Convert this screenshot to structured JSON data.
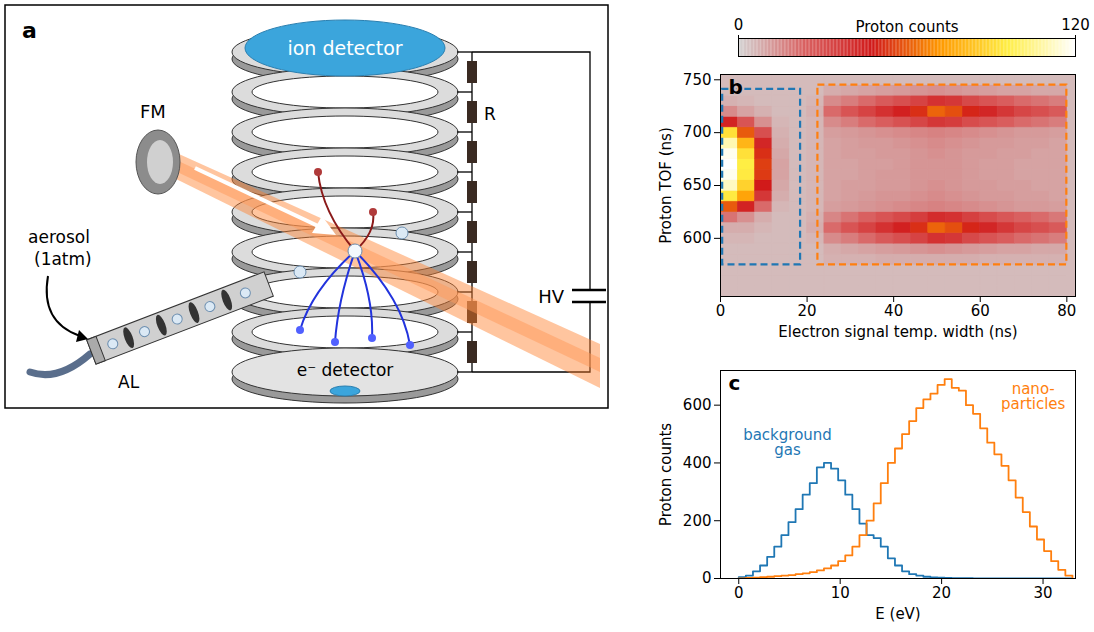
{
  "diagram": {
    "panel": "a",
    "ion_detector": "ion detector",
    "mirror": "FM",
    "resistor": "R",
    "aerosol": "aerosol",
    "pressure": "(1atm)",
    "aerodynamic_lens": "AL",
    "voltage": "HV",
    "electron_detector": "e⁻ detector"
  },
  "chart_data": [
    {
      "type": "heatmap",
      "panel": "b",
      "xlabel": "Electron signal temp. width (ns)",
      "ylabel": "Proton TOF (ns)",
      "xlim": [
        0,
        82
      ],
      "ylim": [
        545,
        755
      ],
      "xticks": [
        0,
        20,
        40,
        60,
        80
      ],
      "yticks": [
        600,
        650,
        700,
        750
      ],
      "x_bins": [
        0,
        4,
        8,
        12,
        16,
        20,
        24,
        28,
        32,
        36,
        40,
        44,
        48,
        52,
        56,
        60,
        64,
        68,
        72,
        76,
        80
      ],
      "y_bins": [
        545,
        555,
        565,
        575,
        585,
        595,
        605,
        615,
        625,
        635,
        645,
        655,
        665,
        675,
        685,
        695,
        705,
        715,
        725,
        735,
        745,
        755
      ],
      "counts": [
        [
          5,
          5,
          5,
          5,
          5,
          5,
          5,
          5,
          5,
          5,
          5,
          5,
          5,
          5,
          5,
          5,
          5,
          5,
          5,
          5
        ],
        [
          5,
          5,
          5,
          5,
          5,
          5,
          5,
          5,
          5,
          5,
          5,
          5,
          5,
          5,
          5,
          5,
          5,
          5,
          5,
          5
        ],
        [
          5,
          5,
          5,
          5,
          5,
          5,
          5,
          5,
          5,
          5,
          5,
          5,
          5,
          5,
          5,
          5,
          5,
          5,
          5,
          5
        ],
        [
          5,
          5,
          5,
          5,
          5,
          5,
          7,
          7,
          7,
          8,
          8,
          8,
          8,
          8,
          8,
          7,
          7,
          7,
          7,
          7
        ],
        [
          5,
          5,
          5,
          5,
          5,
          5,
          8,
          9,
          10,
          11,
          12,
          13,
          14,
          13,
          12,
          11,
          10,
          10,
          9,
          9
        ],
        [
          6,
          6,
          5,
          5,
          5,
          6,
          15,
          18,
          22,
          26,
          30,
          34,
          40,
          38,
          32,
          28,
          25,
          22,
          20,
          18
        ],
        [
          8,
          8,
          6,
          5,
          5,
          8,
          22,
          28,
          34,
          40,
          46,
          52,
          62,
          58,
          50,
          44,
          38,
          33,
          30,
          26
        ],
        [
          20,
          14,
          8,
          5,
          5,
          7,
          16,
          20,
          24,
          28,
          32,
          36,
          42,
          40,
          35,
          31,
          27,
          24,
          22,
          19
        ],
        [
          60,
          45,
          22,
          6,
          5,
          6,
          11,
          12,
          13,
          14,
          15,
          16,
          17,
          16,
          15,
          14,
          13,
          12,
          12,
          11
        ],
        [
          95,
          75,
          38,
          8,
          5,
          6,
          10,
          11,
          12,
          13,
          13,
          14,
          15,
          14,
          13,
          12,
          12,
          11,
          11,
          10
        ],
        [
          112,
          88,
          48,
          9,
          5,
          6,
          10,
          11,
          11,
          12,
          12,
          13,
          14,
          13,
          12,
          12,
          11,
          11,
          10,
          10
        ],
        [
          118,
          95,
          54,
          10,
          5,
          6,
          10,
          10,
          11,
          12,
          12,
          13,
          13,
          13,
          12,
          11,
          11,
          10,
          10,
          10
        ],
        [
          120,
          96,
          55,
          10,
          5,
          6,
          10,
          10,
          11,
          11,
          12,
          13,
          13,
          13,
          12,
          11,
          11,
          10,
          10,
          10
        ],
        [
          118,
          92,
          52,
          9,
          5,
          6,
          10,
          11,
          11,
          12,
          12,
          13,
          14,
          13,
          12,
          12,
          11,
          11,
          10,
          10
        ],
        [
          110,
          80,
          44,
          8,
          5,
          6,
          10,
          11,
          12,
          12,
          13,
          14,
          15,
          14,
          13,
          12,
          12,
          11,
          11,
          10
        ],
        [
          92,
          60,
          30,
          7,
          5,
          6,
          11,
          12,
          13,
          14,
          15,
          16,
          17,
          16,
          15,
          14,
          13,
          12,
          12,
          11
        ],
        [
          45,
          28,
          14,
          6,
          5,
          6,
          15,
          18,
          22,
          25,
          29,
          33,
          38,
          36,
          31,
          28,
          25,
          22,
          20,
          18
        ],
        [
          15,
          10,
          7,
          5,
          5,
          7,
          22,
          28,
          34,
          40,
          46,
          52,
          62,
          58,
          50,
          44,
          38,
          33,
          30,
          26
        ],
        [
          7,
          6,
          5,
          5,
          5,
          6,
          15,
          18,
          22,
          26,
          30,
          34,
          40,
          38,
          32,
          28,
          25,
          22,
          20,
          18
        ],
        [
          5,
          5,
          5,
          5,
          5,
          5,
          8,
          9,
          10,
          11,
          12,
          13,
          14,
          13,
          12,
          11,
          10,
          10,
          9,
          9
        ],
        [
          5,
          5,
          5,
          5,
          5,
          5,
          5,
          5,
          5,
          5,
          5,
          5,
          5,
          5,
          5,
          5,
          5,
          5,
          5,
          5
        ]
      ],
      "colorbar": {
        "label": "Proton counts",
        "range": [
          0,
          120
        ],
        "ticks": [
          0,
          120
        ],
        "colors": [
          "#d3d3d3",
          "#d96060",
          "#d11a1a",
          "#ff9900",
          "#ffee44",
          "#ffffff"
        ]
      },
      "regions": [
        {
          "x": [
            0.5,
            18.5
          ],
          "y": [
            575,
            741
          ],
          "color": "#1f77b4"
        },
        {
          "x": [
            22.5,
            80
          ],
          "y": [
            575,
            745
          ],
          "color": "#ff7f0e"
        }
      ]
    },
    {
      "type": "histogram",
      "panel": "c",
      "xlabel": "E (eV)",
      "ylabel": "Proton counts",
      "xlim": [
        -1.8,
        33.2
      ],
      "ylim": [
        0,
        720
      ],
      "xticks": [
        0,
        10,
        20,
        30
      ],
      "yticks": [
        0,
        200,
        400,
        600
      ],
      "bins": [
        0,
        0.7,
        1.4,
        2.1,
        2.8,
        3.5,
        4.2,
        4.9,
        5.6,
        6.3,
        7,
        7.7,
        8.4,
        9.1,
        9.8,
        10.5,
        11.2,
        11.9,
        12.6,
        13.3,
        14,
        14.7,
        15.4,
        16.1,
        16.8,
        17.5,
        18.2,
        18.9,
        19.6,
        20.3,
        21,
        21.7,
        22.4,
        23.1,
        23.8,
        24.5,
        25.2,
        25.9,
        26.6,
        27.3,
        28,
        28.7,
        29.4,
        30.1,
        30.8,
        31.5,
        32.2,
        32.9
      ],
      "series": [
        {
          "name": "background\ngas",
          "color": "#1f77b4",
          "values": [
            5,
            10,
            25,
            45,
            75,
            110,
            150,
            195,
            240,
            290,
            330,
            385,
            400,
            380,
            340,
            290,
            240,
            190,
            150,
            140,
            110,
            70,
            45,
            25,
            15,
            10,
            6,
            4,
            3,
            2,
            1,
            1,
            1,
            0,
            0,
            0,
            0,
            0,
            0,
            0,
            0,
            0,
            0,
            0,
            0,
            0,
            0
          ]
        },
        {
          "name": "nano-\nparticles",
          "color": "#ff7f0e",
          "values": [
            0,
            2,
            3,
            5,
            6,
            8,
            10,
            12,
            15,
            18,
            22,
            28,
            35,
            45,
            60,
            80,
            110,
            150,
            200,
            260,
            330,
            400,
            450,
            500,
            545,
            590,
            620,
            640,
            670,
            690,
            660,
            650,
            600,
            570,
            520,
            470,
            430,
            390,
            340,
            280,
            230,
            180,
            135,
            95,
            60,
            30,
            10
          ]
        }
      ]
    }
  ]
}
